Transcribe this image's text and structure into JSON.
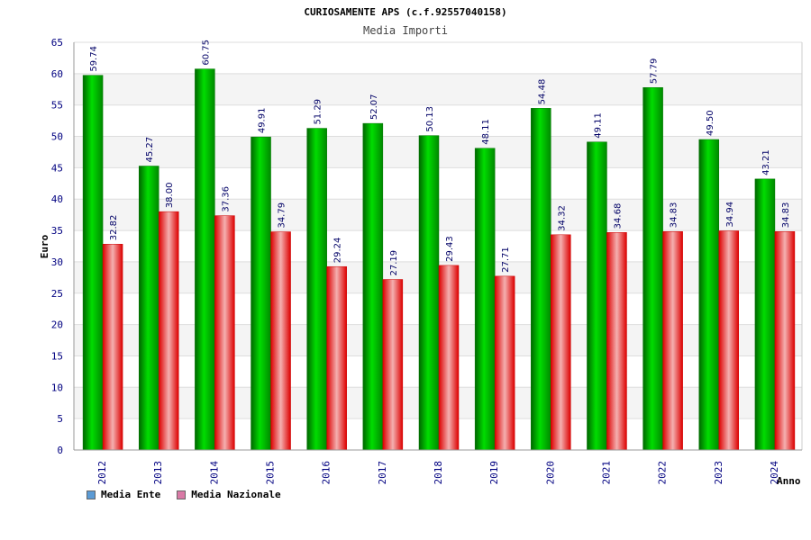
{
  "chart_data": {
    "type": "bar",
    "title": "CURIOSAMENTE APS (c.f.92557040158)",
    "subtitle": "Media Importi",
    "xlabel": "Anno",
    "ylabel": "Euro",
    "ylim": [
      0,
      65
    ],
    "ytick_step": 5,
    "grid": true,
    "legend_position": "bottom-left",
    "categories": [
      "2012",
      "2013",
      "2014",
      "2015",
      "2016",
      "2017",
      "2018",
      "2019",
      "2020",
      "2021",
      "2022",
      "2023",
      "2024"
    ],
    "series": [
      {
        "name": "Media Ente",
        "color": "#00aa00",
        "legend_color": "#5b9bd5",
        "values": [
          59.74,
          45.27,
          60.75,
          49.91,
          51.29,
          52.07,
          50.13,
          48.11,
          54.48,
          49.11,
          57.79,
          49.5,
          43.21
        ],
        "labels": [
          "59.74",
          "45.27",
          "60.75",
          "49.91",
          "51.29",
          "52.07",
          "50.13",
          "48.11",
          "54.48",
          "49.11",
          "57.79",
          "49.50",
          "43.21"
        ]
      },
      {
        "name": "Media Nazionale",
        "color": "#ee2222",
        "legend_color": "#d97aa6",
        "values": [
          32.82,
          38.0,
          37.36,
          34.79,
          29.24,
          27.19,
          29.43,
          27.71,
          34.32,
          34.68,
          34.83,
          34.94,
          34.83
        ],
        "labels": [
          "32.82",
          "38.00",
          "37.36",
          "34.79",
          "29.24",
          "27.19",
          "29.43",
          "27.71",
          "34.32",
          "34.68",
          "34.83",
          "34.94",
          "34.83"
        ]
      }
    ]
  }
}
